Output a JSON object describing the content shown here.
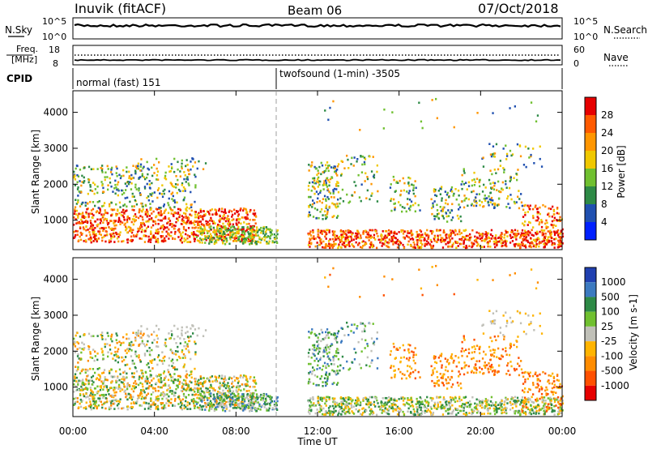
{
  "header": {
    "station": "Inuvik (fitACF)",
    "beam": "Beam 06",
    "date": "07/Oct/2018"
  },
  "noise_panel": {
    "left_label": "N.Sky",
    "right_label": "N.Search",
    "left_ticks": [
      "10^5",
      "10^0"
    ],
    "right_ticks": [
      "10^5",
      "10^0"
    ]
  },
  "freq_panel": {
    "left_label_1": "Freq.",
    "left_label_2": "[MHz]",
    "left_ticks": [
      "18",
      "8"
    ],
    "right_ticks": [
      "60",
      "0"
    ],
    "right_label": "Nave"
  },
  "cpid_panel": {
    "label": "CPID",
    "mode_1": "normal (fast) 151",
    "mode_2": "twofsound (1-min) -3505"
  },
  "chart_data": [
    {
      "type": "heatmap",
      "title": "Power",
      "ylabel": "Slant Range [km]",
      "y_ticks": [
        1000,
        2000,
        3000,
        4000
      ],
      "ylim": [
        180,
        4600
      ],
      "colorbar_label": "Power [dB]",
      "colorbar_ticks": [
        "28",
        "24",
        "20",
        "16",
        "12",
        "8",
        "4"
      ],
      "colorbar_colors": [
        "#e60000",
        "#ff5a00",
        "#ff9600",
        "#f0c800",
        "#70c030",
        "#2e8a46",
        "#2050b0",
        "#0020ff"
      ],
      "scatter_regions": [
        {
          "t_start": 0.0,
          "t_end": 9.0,
          "range_low": 300,
          "range_high": 1300,
          "level": "high"
        },
        {
          "t_start": 0.0,
          "t_end": 6.0,
          "range_low": 1300,
          "range_high": 2600,
          "level": "mixed"
        },
        {
          "t_start": 11.5,
          "t_end": 24.0,
          "range_low": 180,
          "range_high": 700,
          "level": "high"
        },
        {
          "t_start": 11.5,
          "t_end": 24.0,
          "range_low": 1000,
          "range_high": 2800,
          "level": "mixed"
        }
      ]
    },
    {
      "type": "heatmap",
      "title": "Velocity",
      "ylabel": "Slant Range [km]",
      "y_ticks": [
        1000,
        2000,
        3000,
        4000
      ],
      "ylim": [
        180,
        4600
      ],
      "colorbar_label": "Velocity [m s-1]",
      "colorbar_ticks": [
        "1000",
        "500",
        "100",
        "25",
        "-25",
        "-100",
        "-500",
        "-1000"
      ],
      "colorbar_colors": [
        "#2040b0",
        "#3c7ac0",
        "#2e8a46",
        "#70c030",
        "#c0c0b8",
        "#ffb400",
        "#ff8c00",
        "#ff5000",
        "#e60000"
      ],
      "x_ticks": [
        "00:00",
        "04:00",
        "08:00",
        "12:00",
        "16:00",
        "20:00",
        "00:00"
      ],
      "xlabel": "Time UT"
    }
  ]
}
